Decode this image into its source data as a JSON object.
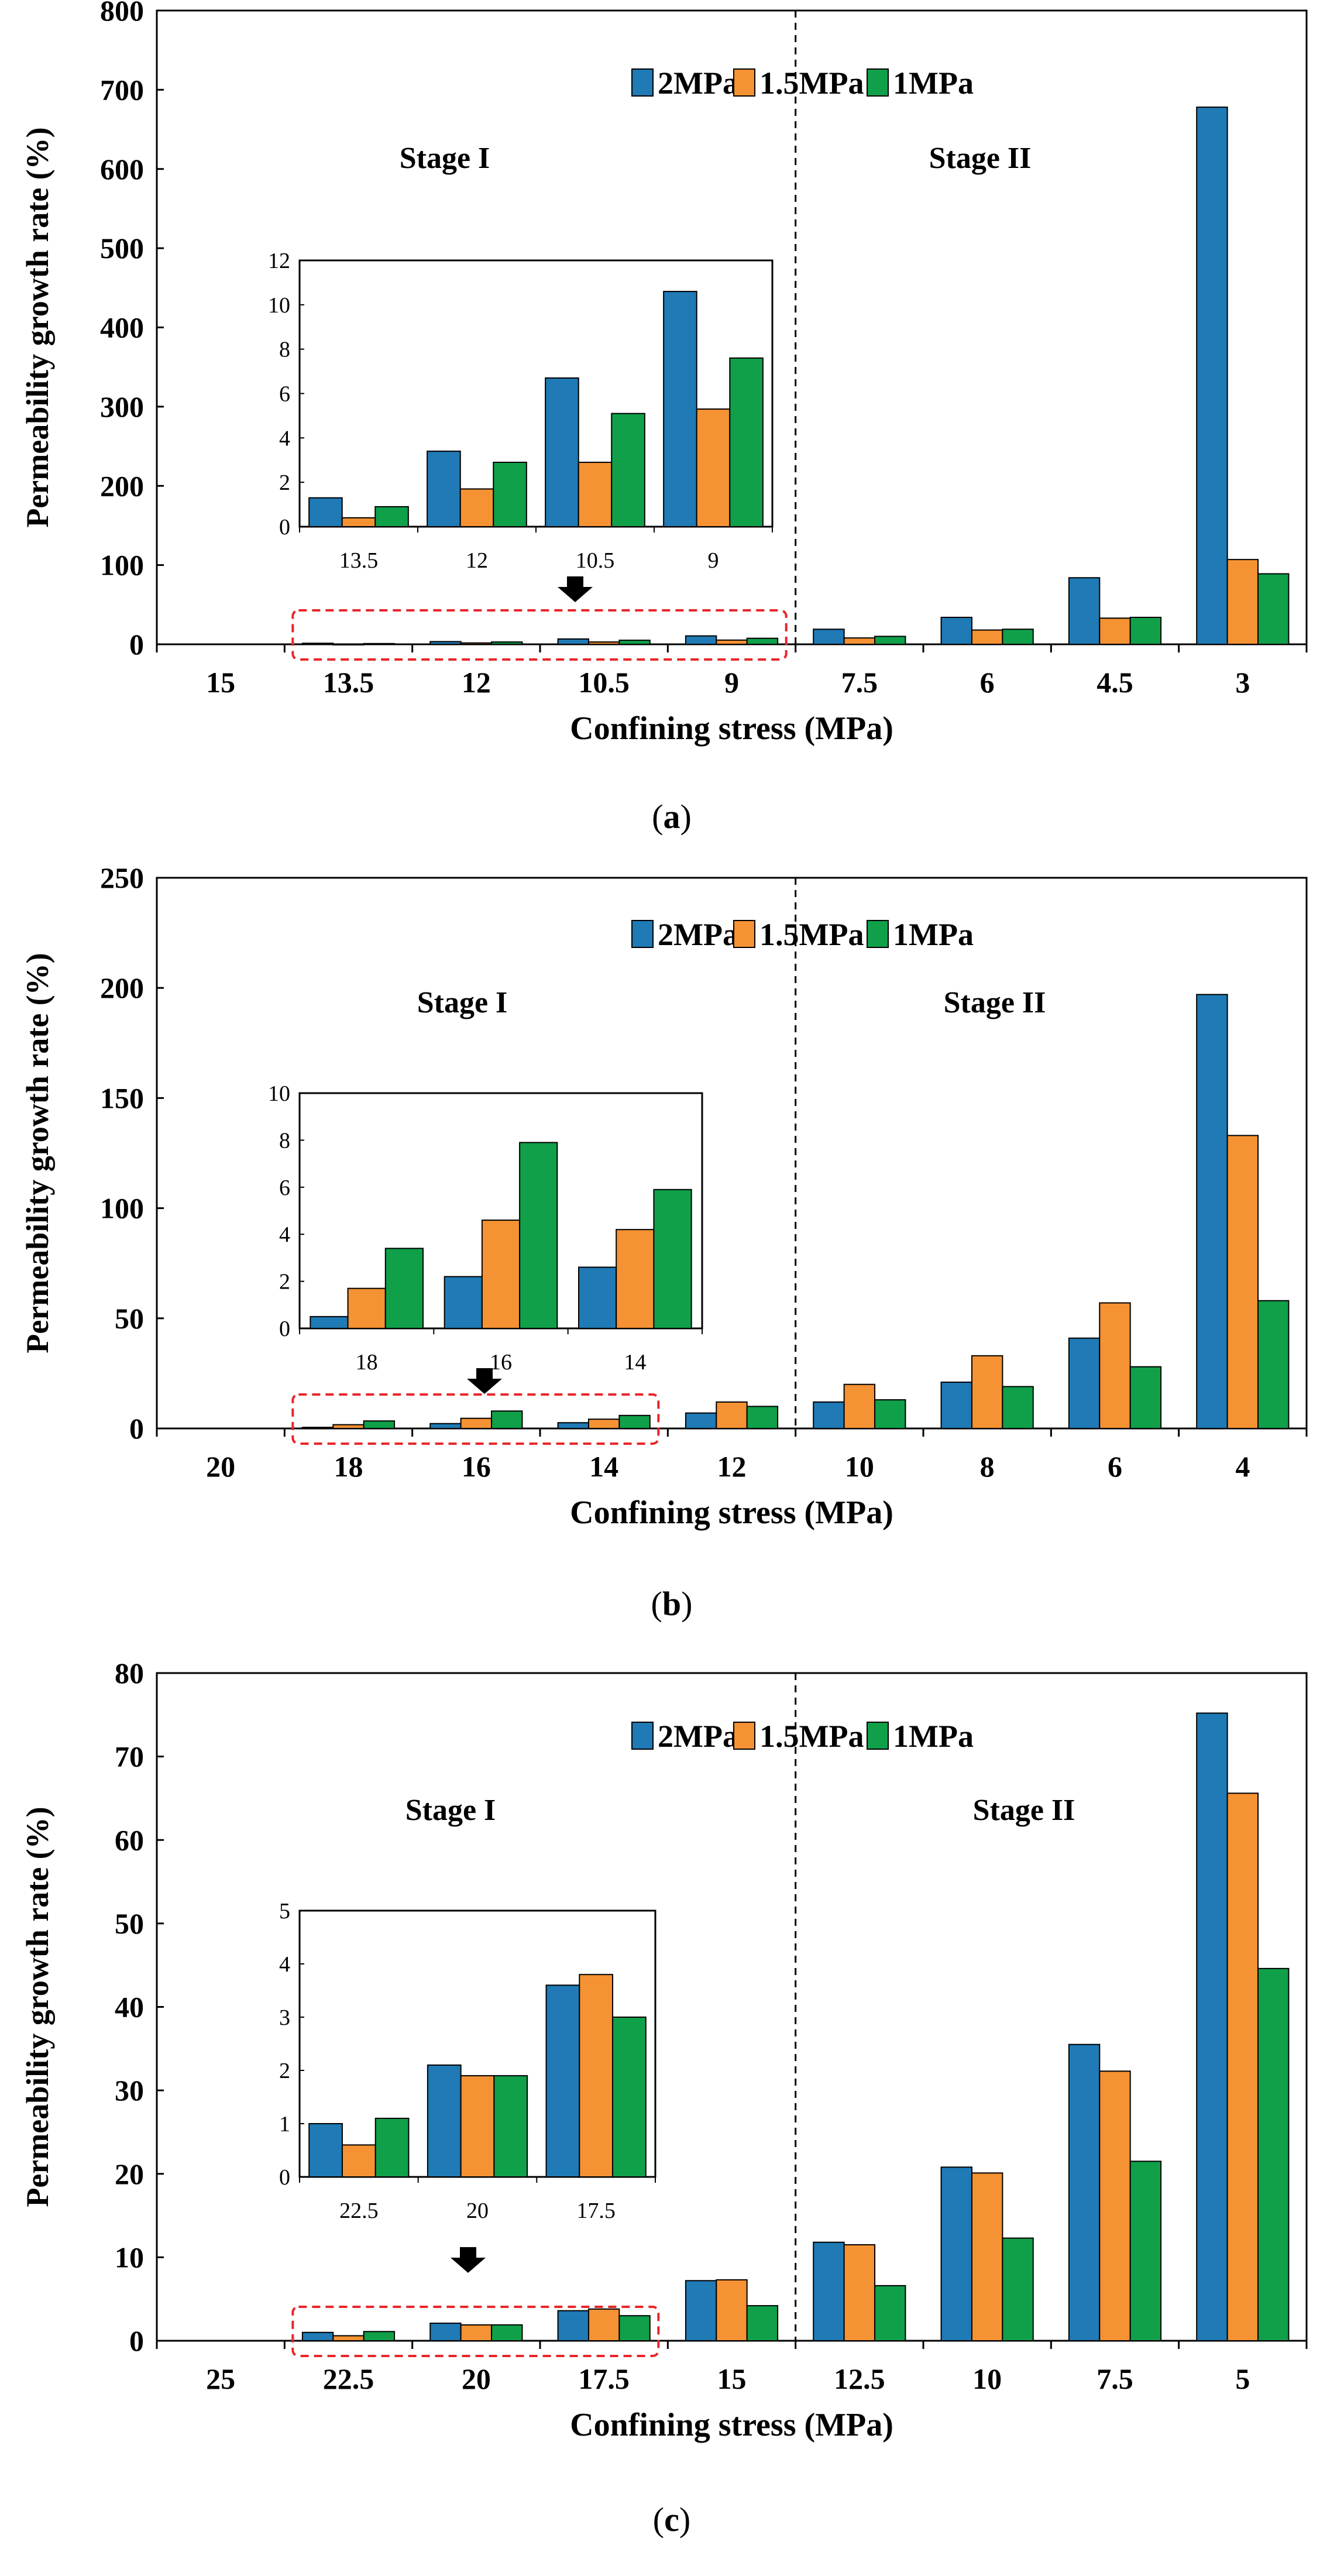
{
  "figure": {
    "panels": [
      {
        "id": "a",
        "caption_letter": "a"
      },
      {
        "id": "b",
        "caption_letter": "b"
      },
      {
        "id": "c",
        "caption_letter": "c"
      }
    ]
  },
  "colors": {
    "series": [
      "#1f7ab5",
      "#f59233",
      "#10a04a"
    ],
    "dashed_box": "#e8262a",
    "axis": "#000000"
  },
  "chart_data": [
    {
      "type": "bar",
      "ylabel": "Permeability growth rate (%)",
      "xlabel": "Confining stress (MPa)",
      "ylim": [
        0,
        800
      ],
      "yticks": [
        0,
        100,
        200,
        300,
        400,
        500,
        600,
        700,
        800
      ],
      "categories": [
        "15",
        "13.5",
        "12",
        "10.5",
        "9",
        "7.5",
        "6",
        "4.5",
        "3"
      ],
      "legend": [
        "2MPa",
        "1.5MPa",
        "1MPa"
      ],
      "series": [
        {
          "name": "2MPa",
          "values": [
            0,
            1.3,
            3.4,
            6.7,
            10.6,
            19,
            34,
            84,
            678
          ]
        },
        {
          "name": "1.5MPa",
          "values": [
            0,
            0.4,
            1.7,
            2.9,
            5.3,
            8,
            18,
            33,
            107
          ]
        },
        {
          "name": "1MPa",
          "values": [
            0,
            0.9,
            2.9,
            5.1,
            7.6,
            10,
            19,
            34,
            89
          ]
        }
      ],
      "stage_labels": [
        "Stage I",
        "Stage II"
      ],
      "inset": {
        "categories": [
          "13.5",
          "12",
          "10.5",
          "9"
        ],
        "ylim": [
          0,
          12
        ],
        "yticks": [
          0,
          2,
          4,
          6,
          8,
          10,
          12
        ],
        "series": [
          {
            "name": "2MPa",
            "values": [
              1.3,
              3.4,
              6.7,
              10.6
            ]
          },
          {
            "name": "1.5MPa",
            "values": [
              0.4,
              1.7,
              2.9,
              5.3
            ]
          },
          {
            "name": "1MPa",
            "values": [
              0.9,
              2.9,
              5.1,
              7.6
            ]
          }
        ]
      }
    },
    {
      "type": "bar",
      "ylabel": "Permeability growth rate (%)",
      "xlabel": "Confining stress (MPa)",
      "ylim": [
        0,
        250
      ],
      "yticks": [
        0,
        50,
        100,
        150,
        200,
        250
      ],
      "categories": [
        "20",
        "18",
        "16",
        "14",
        "12",
        "10",
        "8",
        "6",
        "4"
      ],
      "legend": [
        "2MPa",
        "1.5MPa",
        "1MPa"
      ],
      "series": [
        {
          "name": "2MPa",
          "values": [
            0,
            0.5,
            2.2,
            2.6,
            7,
            12,
            21,
            41,
            197
          ]
        },
        {
          "name": "1.5MPa",
          "values": [
            0,
            1.7,
            4.6,
            4.2,
            12,
            20,
            33,
            57,
            133
          ]
        },
        {
          "name": "1MPa",
          "values": [
            0,
            3.4,
            7.9,
            5.9,
            10,
            13,
            19,
            28,
            58
          ]
        }
      ],
      "stage_labels": [
        "Stage I",
        "Stage II"
      ],
      "inset": {
        "categories": [
          "18",
          "16",
          "14"
        ],
        "ylim": [
          0,
          10
        ],
        "yticks": [
          0,
          2,
          4,
          6,
          8,
          10
        ],
        "series": [
          {
            "name": "2MPa",
            "values": [
              0.5,
              2.2,
              2.6
            ]
          },
          {
            "name": "1.5MPa",
            "values": [
              1.7,
              4.6,
              4.2
            ]
          },
          {
            "name": "1MPa",
            "values": [
              3.4,
              7.9,
              5.9
            ]
          }
        ]
      }
    },
    {
      "type": "bar",
      "ylabel": "Permeability growth rate (%)",
      "xlabel": "Confining stress (MPa)",
      "ylim": [
        0,
        80
      ],
      "yticks": [
        0,
        10,
        20,
        30,
        40,
        50,
        60,
        70,
        80
      ],
      "categories": [
        "25",
        "22.5",
        "20",
        "17.5",
        "15",
        "12.5",
        "10",
        "7.5",
        "5"
      ],
      "legend": [
        "2MPa",
        "1.5MPa",
        "1MPa"
      ],
      "series": [
        {
          "name": "2MPa",
          "values": [
            0,
            1.0,
            2.1,
            3.6,
            7.2,
            11.8,
            20.8,
            35.5,
            75.2
          ]
        },
        {
          "name": "1.5MPa",
          "values": [
            0,
            0.6,
            1.9,
            3.8,
            7.3,
            11.5,
            20.1,
            32.3,
            65.6
          ]
        },
        {
          "name": "1MPa",
          "values": [
            0,
            1.1,
            1.9,
            3.0,
            4.2,
            6.6,
            12.3,
            21.5,
            44.6
          ]
        }
      ],
      "stage_labels": [
        "Stage I",
        "Stage II"
      ],
      "inset": {
        "categories": [
          "22.5",
          "20",
          "17.5"
        ],
        "ylim": [
          0,
          5
        ],
        "yticks": [
          0,
          1,
          2,
          3,
          4,
          5
        ],
        "series": [
          {
            "name": "2MPa",
            "values": [
              1.0,
              2.1,
              3.6
            ]
          },
          {
            "name": "1.5MPa",
            "values": [
              0.6,
              1.9,
              3.8
            ]
          },
          {
            "name": "1MPa",
            "values": [
              1.1,
              1.9,
              3.0
            ]
          }
        ]
      }
    }
  ]
}
